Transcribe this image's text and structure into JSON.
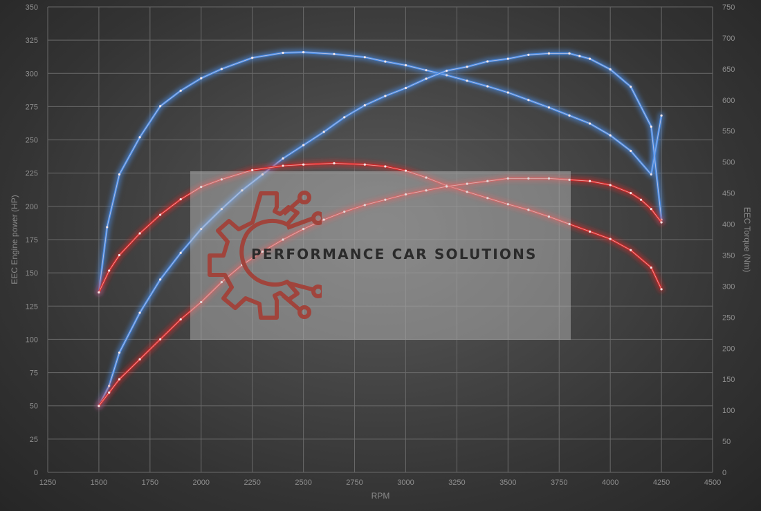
{
  "chart_data": {
    "type": "line",
    "xlabel": "RPM",
    "ylabel_left": "EEC Engine power (HP)",
    "ylabel_right": "EEC Torque (Nm)",
    "xlim": [
      1250,
      4500
    ],
    "ylim_left": [
      0,
      350
    ],
    "ylim_right": [
      0,
      750
    ],
    "x_ticks": [
      1250,
      1500,
      1750,
      2000,
      2250,
      2500,
      2750,
      3000,
      3250,
      3500,
      3750,
      4000,
      4250,
      4500
    ],
    "y_left_ticks": [
      0,
      25,
      50,
      75,
      100,
      125,
      150,
      175,
      200,
      225,
      250,
      275,
      300,
      325,
      350
    ],
    "y_right_ticks": [
      0,
      50,
      100,
      150,
      200,
      250,
      300,
      350,
      400,
      450,
      500,
      550,
      600,
      650,
      700,
      750
    ],
    "grid": true,
    "series": [
      {
        "color": "#4a8ee8",
        "axis": "right",
        "x": [
          1500,
          1540,
          1600,
          1700,
          1800,
          1900,
          2000,
          2100,
          2250,
          2400,
          2500,
          2650,
          2800,
          2900,
          3000,
          3100,
          3200,
          3300,
          3400,
          3500,
          3600,
          3700,
          3800,
          3900,
          4000,
          4100,
          4200,
          4250
        ],
        "values": [
          290,
          395,
          480,
          540,
          590,
          615,
          635,
          650,
          668,
          676,
          677,
          674,
          669,
          662,
          656,
          648,
          640,
          631,
          622,
          612,
          600,
          588,
          575,
          562,
          543,
          518,
          480,
          575
        ]
      },
      {
        "color": "#4a8ee8",
        "axis": "left",
        "x": [
          1500,
          1550,
          1600,
          1700,
          1800,
          1900,
          2000,
          2100,
          2200,
          2300,
          2400,
          2500,
          2600,
          2700,
          2800,
          2900,
          3000,
          3100,
          3200,
          3300,
          3400,
          3500,
          3600,
          3700,
          3800,
          3850,
          3900,
          4000,
          4100,
          4200,
          4250
        ],
        "values": [
          50,
          65,
          90,
          120,
          145,
          165,
          183,
          198,
          212,
          224,
          236,
          246,
          256,
          267,
          276,
          283,
          289,
          296,
          302,
          305,
          309,
          311,
          314,
          315,
          315,
          313,
          311,
          303,
          290,
          260,
          190
        ]
      },
      {
        "color": "#d62a2a",
        "axis": "right",
        "x": [
          1500,
          1550,
          1600,
          1700,
          1800,
          1900,
          2000,
          2100,
          2250,
          2400,
          2500,
          2650,
          2800,
          2900,
          3000,
          3100,
          3200,
          3300,
          3400,
          3500,
          3600,
          3700,
          3800,
          3900,
          4000,
          4100,
          4200,
          4250
        ],
        "values": [
          290,
          325,
          350,
          385,
          415,
          440,
          460,
          472,
          487,
          494,
          496,
          498,
          496,
          493,
          486,
          475,
          462,
          452,
          442,
          432,
          423,
          412,
          400,
          388,
          376,
          358,
          330,
          295
        ]
      },
      {
        "color": "#d62a2a",
        "axis": "left",
        "x": [
          1500,
          1550,
          1600,
          1700,
          1800,
          1900,
          2000,
          2100,
          2200,
          2300,
          2400,
          2500,
          2600,
          2700,
          2800,
          2900,
          3000,
          3100,
          3200,
          3300,
          3400,
          3500,
          3600,
          3700,
          3800,
          3900,
          4000,
          4100,
          4150,
          4200,
          4250
        ],
        "values": [
          50,
          60,
          70,
          85,
          100,
          115,
          128,
          143,
          156,
          166,
          175,
          183,
          190,
          196,
          201,
          205,
          209,
          212,
          215,
          217,
          219,
          221,
          221,
          221,
          220,
          219,
          216,
          210,
          205,
          198,
          188
        ]
      }
    ]
  },
  "watermark": {
    "brand_text": "PERFORMANCE CAR SOLUTIONS",
    "logo_icon": "gear-circuit-logo-icon",
    "logo_color": "#a0443c"
  }
}
